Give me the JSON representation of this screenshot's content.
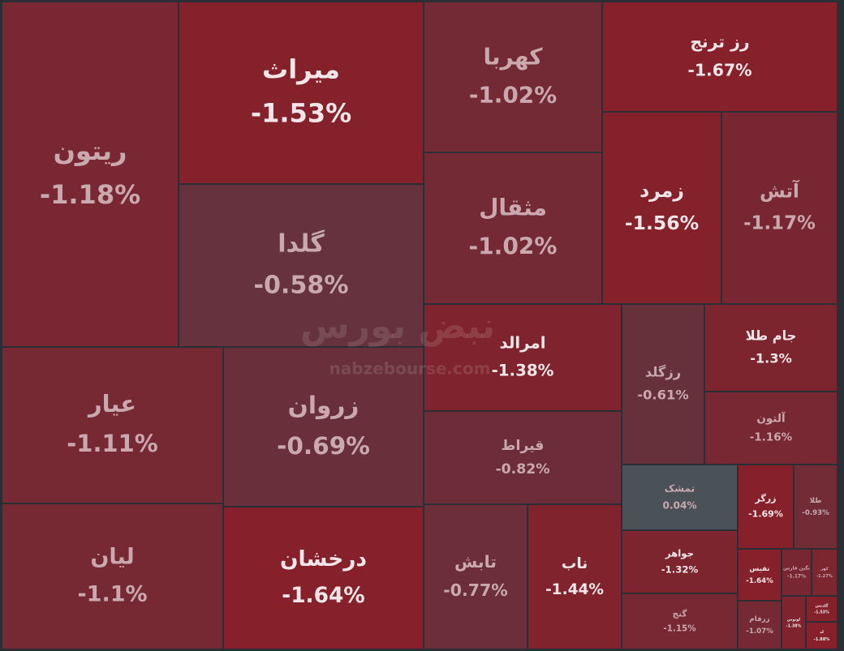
{
  "chart_data": {
    "type": "treemap",
    "watermark": "نبض بورس",
    "watermark_url": "nabzebourse.com",
    "categories": [
      "ریتون",
      "میراث",
      "گلدا",
      "کهربا",
      "مثقال",
      "رز ترنج",
      "زمرد",
      "آتش",
      "عیار",
      "زروان",
      "لیان",
      "درخشان",
      "امرالد",
      "قیراط",
      "تابش",
      "ناب",
      "رزگلد",
      "جام طلا",
      "آلتون",
      "تمشک",
      "زرگر",
      "طلا",
      "جواهر",
      "گنج",
      "نفیس",
      "نگین فارس",
      "کهر",
      "زرفام",
      "لوتوس",
      "گلدیس",
      "لد"
    ],
    "values": [
      -1.18,
      -1.53,
      -0.58,
      -1.02,
      -1.02,
      -1.67,
      -1.56,
      -1.17,
      -1.11,
      -0.69,
      -1.1,
      -1.64,
      -1.38,
      -0.82,
      -0.77,
      -1.44,
      -0.61,
      -1.3,
      -1.16,
      0.04,
      -1.69,
      -0.93,
      -1.32,
      -1.15,
      -1.64,
      -1.17,
      -1.27,
      -1.07,
      -1.38,
      -1.53,
      -1.88
    ],
    "value_labels": [
      "-1.18%",
      "-1.53%",
      "-0.58%",
      "-1.02%",
      "-1.02%",
      "-1.67%",
      "-1.56%",
      "-1.17%",
      "-1.11%",
      "-0.69%",
      "-1.1%",
      "-1.64%",
      "-1.38%",
      "-0.82%",
      "-0.77%",
      "-1.44%",
      "-0.61%",
      "-1.3%",
      "-1.16%",
      "0.04%",
      "-1.69%",
      "-0.93%",
      "-1.32%",
      "-1.15%",
      "-1.64%",
      "-1.17%",
      "-1.27%",
      "-1.07%",
      "-1.38%",
      "-1.53%",
      "-1.88%"
    ]
  }
}
